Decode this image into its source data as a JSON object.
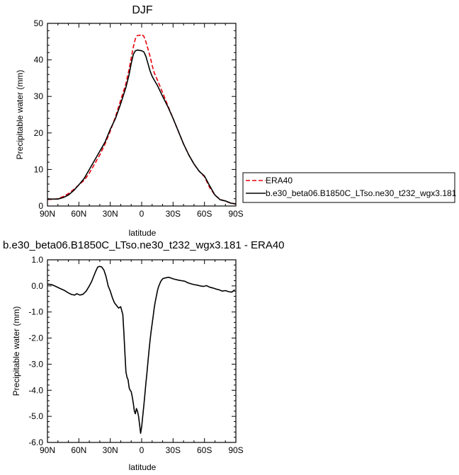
{
  "chart_data": [
    {
      "type": "line",
      "title": "DJF",
      "xlabel": "latitude",
      "ylabel": "Precipitable water (mm)",
      "xlim": [
        90,
        -90
      ],
      "ylim": [
        0,
        50
      ],
      "xticks": [
        90,
        60,
        30,
        0,
        -30,
        -60,
        -90
      ],
      "xtick_labels": [
        "90N",
        "60N",
        "30N",
        "0",
        "30S",
        "60S",
        "90S"
      ],
      "yticks": [
        0,
        10,
        20,
        30,
        40,
        50
      ],
      "ytick_labels": [
        "0",
        "10",
        "20",
        "30",
        "40",
        "50"
      ],
      "legend_position": "right",
      "series": [
        {
          "name": "ERA40",
          "color": "#e8000b",
          "dash": "dashed",
          "x": [
            90,
            85,
            80,
            75,
            70,
            65,
            60,
            55,
            50,
            45,
            40,
            35,
            30,
            25,
            20,
            15,
            12,
            10,
            8,
            6,
            4,
            2,
            0,
            -2,
            -4,
            -6,
            -8,
            -10,
            -12,
            -15,
            -20,
            -25,
            -30,
            -35,
            -40,
            -45,
            -50,
            -55,
            -60,
            -65,
            -70,
            -75,
            -80,
            -85,
            -90
          ],
          "y": [
            1.8,
            1.8,
            2.0,
            2.6,
            3.4,
            4.5,
            5.8,
            7.0,
            9.0,
            11.5,
            14.0,
            17.0,
            20.5,
            24.5,
            29.0,
            33.5,
            37.5,
            40.5,
            43.5,
            45.8,
            46.7,
            46.7,
            47.0,
            46.5,
            45.0,
            43.0,
            41.0,
            38.5,
            36.5,
            34.5,
            31.0,
            27.5,
            24.0,
            20.5,
            17.0,
            14.0,
            11.5,
            9.5,
            8.0,
            5.0,
            3.0,
            1.8,
            1.3,
            0.8,
            0.5
          ]
        },
        {
          "name": "b.e30_beta06.B1850C_LTso.ne30_t232_wgx3.181",
          "color": "#000000",
          "dash": "solid",
          "x": [
            90,
            85,
            80,
            75,
            70,
            65,
            60,
            55,
            50,
            45,
            40,
            35,
            30,
            25,
            20,
            15,
            12,
            10,
            8,
            6,
            4,
            2,
            0,
            -2,
            -4,
            -6,
            -8,
            -10,
            -12,
            -15,
            -20,
            -25,
            -30,
            -35,
            -40,
            -45,
            -50,
            -55,
            -60,
            -65,
            -70,
            -75,
            -80,
            -85,
            -90
          ],
          "y": [
            1.9,
            1.9,
            1.9,
            2.3,
            3.0,
            4.2,
            5.8,
            7.5,
            10.0,
            12.5,
            15.0,
            17.5,
            21.0,
            24.0,
            28.0,
            32.5,
            36.0,
            39.0,
            41.5,
            42.5,
            42.7,
            42.6,
            42.5,
            42.2,
            41.0,
            39.0,
            37.0,
            35.5,
            34.5,
            33.0,
            30.0,
            27.2,
            24.0,
            20.5,
            17.0,
            14.0,
            11.5,
            9.5,
            8.2,
            5.5,
            3.0,
            1.7,
            1.4,
            0.8,
            0.6
          ]
        }
      ]
    },
    {
      "type": "line",
      "title": "b.e30_beta06.B1850C_LTso.ne30_t232_wgx3.181 - ERA40",
      "xlabel": "latitude",
      "ylabel": "Precipitable water (mm)",
      "xlim": [
        90,
        -90
      ],
      "ylim": [
        -6,
        1
      ],
      "xticks": [
        90,
        60,
        30,
        0,
        -30,
        -60,
        -90
      ],
      "xtick_labels": [
        "90N",
        "60N",
        "30N",
        "0",
        "30S",
        "60S",
        "90S"
      ],
      "yticks": [
        1,
        0,
        -1,
        -2,
        -3,
        -4,
        -5,
        -6
      ],
      "ytick_labels": [
        "1.0",
        "0.0",
        "-1.0",
        "-2.0",
        "-3.0",
        "-4.0",
        "-5.0",
        "-6.0"
      ],
      "series": [
        {
          "color": "#000000",
          "x": [
            90,
            86,
            82,
            78,
            74,
            70,
            67,
            64,
            62,
            59,
            56,
            53,
            50,
            48,
            46,
            44,
            42,
            40,
            38,
            36,
            34,
            32,
            30,
            28,
            26,
            24,
            22,
            20,
            18,
            17,
            16,
            15,
            14,
            13,
            12,
            11,
            10,
            9,
            8,
            7,
            6,
            5,
            4,
            3,
            2,
            1,
            0,
            -1,
            -2,
            -3,
            -4,
            -5,
            -6,
            -7,
            -8,
            -9,
            -10,
            -11,
            -12,
            -13,
            -14,
            -15,
            -16,
            -17,
            -18,
            -19,
            -20,
            -22,
            -24,
            -26,
            -28,
            -30,
            -32,
            -35,
            -38,
            -41,
            -44,
            -47,
            -50,
            -53,
            -56,
            -59,
            -62,
            -65,
            -68,
            -71,
            -74,
            -77,
            -80,
            -83,
            -86,
            -89
          ],
          "y": [
            0.07,
            0.05,
            -0.02,
            -0.1,
            -0.17,
            -0.27,
            -0.33,
            -0.35,
            -0.3,
            -0.35,
            -0.32,
            -0.2,
            0.0,
            0.15,
            0.35,
            0.55,
            0.72,
            0.75,
            0.72,
            0.6,
            0.35,
            0.0,
            -0.2,
            -0.45,
            -0.65,
            -0.75,
            -0.85,
            -0.8,
            -1.1,
            -1.8,
            -2.6,
            -3.3,
            -3.5,
            -3.6,
            -3.9,
            -4.0,
            -4.05,
            -4.25,
            -4.5,
            -4.8,
            -4.9,
            -4.7,
            -4.8,
            -5.0,
            -5.3,
            -5.65,
            -5.4,
            -5.0,
            -4.6,
            -4.2,
            -3.75,
            -3.35,
            -2.9,
            -2.5,
            -2.1,
            -1.75,
            -1.45,
            -1.15,
            -0.85,
            -0.6,
            -0.4,
            -0.2,
            -0.05,
            0.05,
            0.15,
            0.22,
            0.27,
            0.3,
            0.32,
            0.33,
            0.3,
            0.27,
            0.25,
            0.22,
            0.2,
            0.18,
            0.12,
            0.08,
            0.05,
            0.03,
            0.0,
            -0.02,
            0.01,
            -0.05,
            -0.08,
            -0.12,
            -0.15,
            -0.2,
            -0.18,
            -0.22,
            -0.24,
            -0.15
          ]
        }
      ]
    }
  ]
}
